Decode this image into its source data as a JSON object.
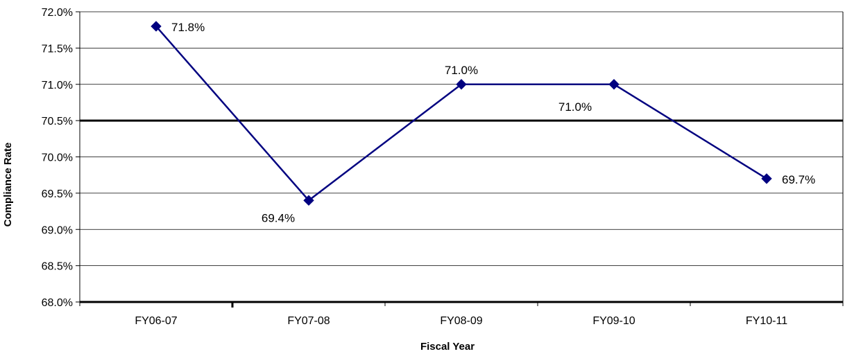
{
  "chart_data": {
    "type": "line",
    "title": "",
    "xlabel": "Fiscal Year",
    "ylabel": "Compliance Rate",
    "categories": [
      "FY06-07",
      "FY07-08",
      "FY08-09",
      "FY09-10",
      "FY10-11"
    ],
    "series": [
      {
        "values": [
          71.8,
          69.4,
          71.0,
          71.0,
          69.7
        ],
        "data_labels": [
          "71.8%",
          "69.4%",
          "71.0%",
          "71.0%",
          "69.7%"
        ],
        "color": "#000080",
        "marker": "diamond"
      }
    ],
    "reference_line": {
      "value": 70.5,
      "color": "#000000"
    },
    "ylim": [
      68.0,
      72.0
    ],
    "ytick_step": 0.5,
    "ytick_labels": [
      "68.0%",
      "68.5%",
      "69.0%",
      "69.5%",
      "70.0%",
      "70.5%",
      "71.0%",
      "71.5%",
      "72.0%"
    ],
    "grid": true,
    "legend": "none"
  }
}
